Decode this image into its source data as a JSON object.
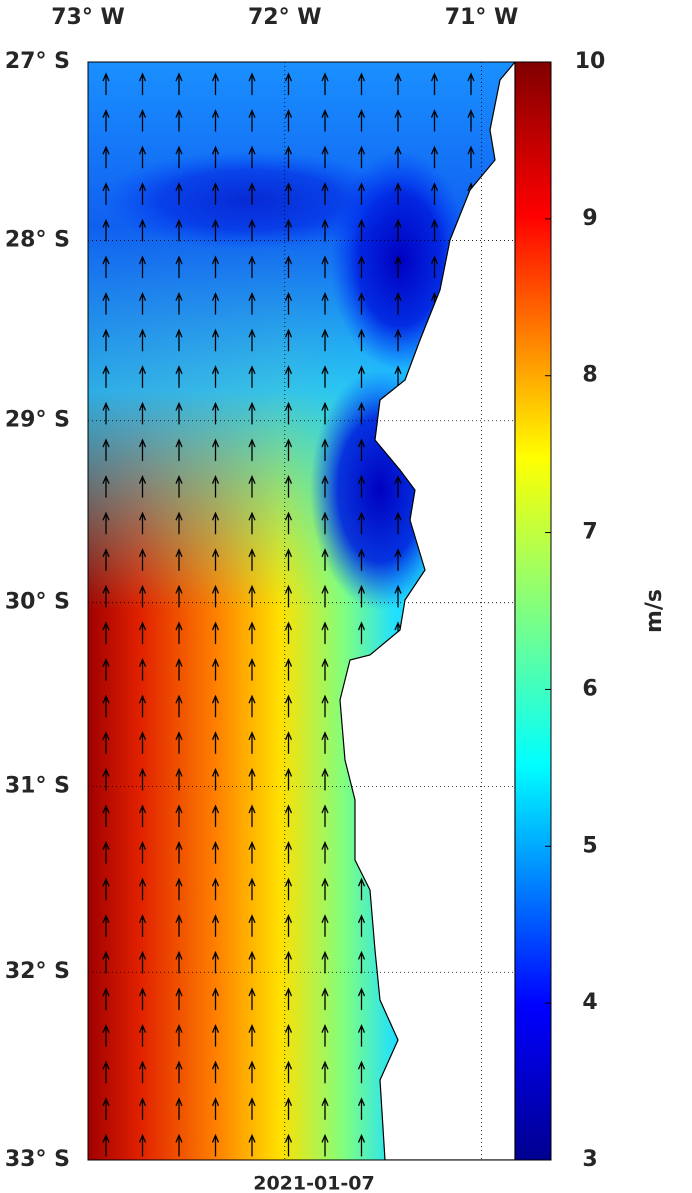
{
  "map": {
    "date": "2021-01-07",
    "lon_ticks": [
      {
        "value": -73,
        "label": "73° W"
      },
      {
        "value": -72,
        "label": "72° W"
      },
      {
        "value": -71,
        "label": "71° W"
      }
    ],
    "lat_ticks": [
      {
        "value": -27,
        "label": "27° S"
      },
      {
        "value": -28,
        "label": "28° S"
      },
      {
        "value": -29,
        "label": "29° S"
      },
      {
        "value": -30,
        "label": "30° S"
      },
      {
        "value": -31,
        "label": "31° S"
      },
      {
        "value": -32,
        "label": "32° S"
      },
      {
        "value": -33,
        "label": "33° S"
      }
    ],
    "xlim": [
      -73,
      -70.83
    ],
    "ylim": [
      -33,
      -27
    ],
    "colorbar": {
      "label": "m/s",
      "lim": [
        3,
        10
      ],
      "ticks": [
        3,
        4,
        5,
        6,
        7,
        8,
        9,
        10
      ]
    }
  }
}
